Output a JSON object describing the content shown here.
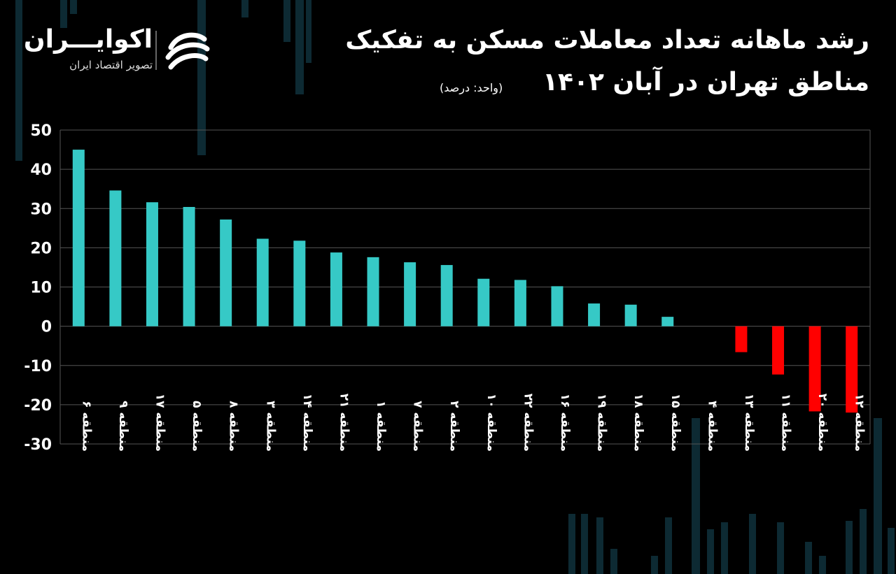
{
  "header": {
    "title_line1": "رشد ماهانه تعداد معاملات مسکن به تفکیک",
    "title_line2": "مناطق تهران در آبان ۱۴۰۲",
    "unit": "(واحد: درصد)"
  },
  "logo": {
    "name": "اکوایـــران",
    "subtitle": "تصویر اقتصاد ایران",
    "mark_icon": "ecoiran-swirl-icon"
  },
  "colors": {
    "positive": "#36C9C6",
    "negative": "#FF0000",
    "grid": "#555555",
    "background": "#000000"
  },
  "chart_data": {
    "type": "bar",
    "title": "",
    "xlabel": "",
    "ylabel": "",
    "ylim": [
      -30,
      50
    ],
    "yticks": [
      50,
      40,
      30,
      20,
      10,
      0,
      -10,
      -20,
      -30
    ],
    "ytick_labels": [
      "50",
      "40",
      "30",
      "20",
      "10",
      "0",
      "-10",
      "-20",
      "-30"
    ],
    "grid": true,
    "categories": [
      "منطقه ۶",
      "منطقه ۹",
      "منطقه ۱۷",
      "منطقه ۵",
      "منطقه ۸",
      "منطقه ۳",
      "منطقه ۱۴",
      "منطقه ۲۱",
      "منطقه ۱",
      "منطقه ۷",
      "منطقه ۲",
      "منطقه ۱۰",
      "منطقه ۲۲",
      "منطقه ۱۶",
      "منطقه ۱۹",
      "منطقه ۱۸",
      "منطقه ۱۵",
      "منطقه ۴",
      "منطقه ۱۳",
      "منطقه ۱۱",
      "منطقه ۲۰",
      "منطقه ۱۲"
    ],
    "values": [
      45,
      34.6,
      31.6,
      30.4,
      27.2,
      22.3,
      21.8,
      18.8,
      17.6,
      16.3,
      15.6,
      12.1,
      11.8,
      10.2,
      5.8,
      5.5,
      2.4,
      0,
      -6.6,
      -12.3,
      -21.7,
      -22
    ]
  }
}
